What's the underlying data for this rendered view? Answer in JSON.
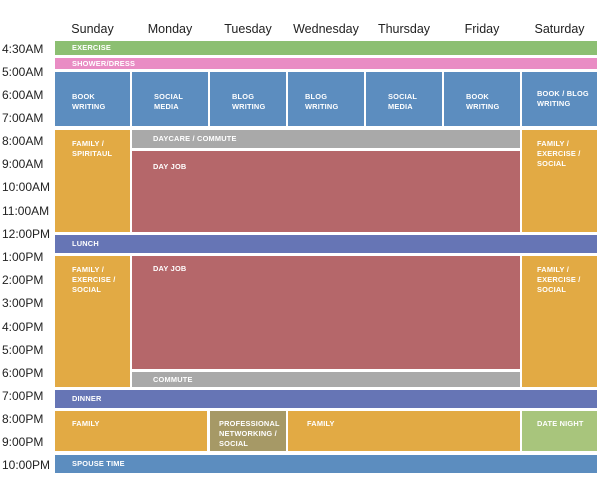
{
  "days": [
    "Sunday",
    "Monday",
    "Tuesday",
    "Wednesday",
    "Thursday",
    "Friday",
    "Saturday"
  ],
  "times": [
    "4:30AM",
    "5:00AM",
    "6:00AM",
    "7:00AM",
    "8:00AM",
    "9:00AM",
    "10:00AM",
    "11:00AM",
    "12:00PM",
    "1:00PM",
    "2:00PM",
    "3:00PM",
    "4:00PM",
    "5:00PM",
    "6:00PM",
    "7:00PM",
    "8:00PM",
    "9:00PM",
    "10:00PM"
  ],
  "blocks": {
    "exercise": "EXERCISE",
    "shower_dress": "SHOWER/DRESS",
    "sun_book_writing": "BOOK\nWRITING",
    "mon_social_media": "SOCIAL\nMEDIA",
    "tue_blog_writing": "BLOG\nWRITING",
    "wed_blog_writing": "BLOG\nWRITING",
    "thu_social_media": "SOCIAL\nMEDIA",
    "fri_book_writing": "BOOK\nWRITING",
    "sat_book_blog": "BOOK / BLOG\nWRITING",
    "sun_family_spiritual": "FAMILY /\nSPIRITAUL",
    "daycare_commute": "DAYCARE / COMMUTE",
    "day_job_am": "DAY JOB",
    "sat_family_exercise_social_am": "FAMILY /\nEXERCISE /\nSOCIAL",
    "lunch": "LUNCH",
    "sun_family_exercise_social_pm": "FAMILY /\nEXERCISE /\nSOCIAL",
    "day_job_pm": "DAY JOB",
    "sat_family_exercise_social_pm": "FAMILY /\nEXERCISE /\nSOCIAL",
    "commute": "COMMUTE",
    "dinner": "DINNER",
    "family_left": "FAMILY",
    "professional_networking": "PROFESSIONAL\nNETWORKING /\nSOCIAL",
    "family_right": "FAMILY",
    "date_night": "DATE NIGHT",
    "spouse_time": "SPOUSE TIME"
  }
}
